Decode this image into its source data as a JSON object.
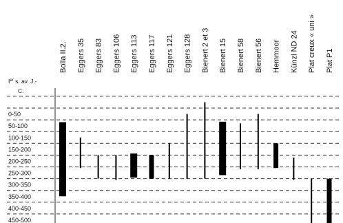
{
  "chart_data": {
    "type": "bar",
    "subtype": "floating-range-chronology",
    "orientation": "vertical",
    "title": "",
    "xlabel": "",
    "ylabel": "",
    "y_first_label_lines": [
      "I",
      "er",
      " s. av. J.-",
      "C."
    ],
    "y_labels": [
      "0-50",
      "50-100",
      "100-150",
      "150-200",
      "200-250",
      "250-300",
      "300-350",
      "350-400",
      "400-450",
      "450-500"
    ],
    "grid": "horizontal-dashed-at-period-boundaries",
    "categories": [
      "Bolla II.2.",
      "Eggers 35",
      "Eggers 83",
      "Eggers 106",
      "Eggers 113",
      "Eggers 117",
      "Eggers 121",
      "Eggers 128",
      "Bienert 2 et 3",
      "Bienert 15",
      "Bienert 58",
      "Bienert 56",
      "Hemmoor",
      "Künzl ND 24",
      "Plat creux « uni »",
      "Plat P1"
    ],
    "ranges": [
      {
        "start": 60,
        "end": 375,
        "emphasis": "thick"
      },
      {
        "start": 125,
        "end": 255,
        "emphasis": "thin"
      },
      {
        "start": 200,
        "end": 300,
        "emphasis": "thin"
      },
      {
        "start": 200,
        "end": 305,
        "emphasis": "thin"
      },
      {
        "start": 193,
        "end": 295,
        "emphasis": "thick"
      },
      {
        "start": 200,
        "end": 300,
        "emphasis": "medium"
      },
      {
        "start": 150,
        "end": 300,
        "emphasis": "thin"
      },
      {
        "start": 25,
        "end": 300,
        "emphasis": "thin"
      },
      {
        "start": -25,
        "end": 300,
        "emphasis": "thin"
      },
      {
        "start": 58,
        "end": 285,
        "emphasis": "thick"
      },
      {
        "start": 65,
        "end": 260,
        "emphasis": "thin"
      },
      {
        "start": 25,
        "end": 260,
        "emphasis": "thin"
      },
      {
        "start": 150,
        "end": 255,
        "emphasis": "medium"
      },
      {
        "start": 210,
        "end": 305,
        "emphasis": "thin"
      },
      {
        "start": 300,
        "end": 510,
        "emphasis": "thin"
      },
      {
        "start": 300,
        "end": 510,
        "emphasis": "medium"
      }
    ],
    "units": "years AD (negative = BC)",
    "ylim": [
      -50,
      510
    ]
  }
}
